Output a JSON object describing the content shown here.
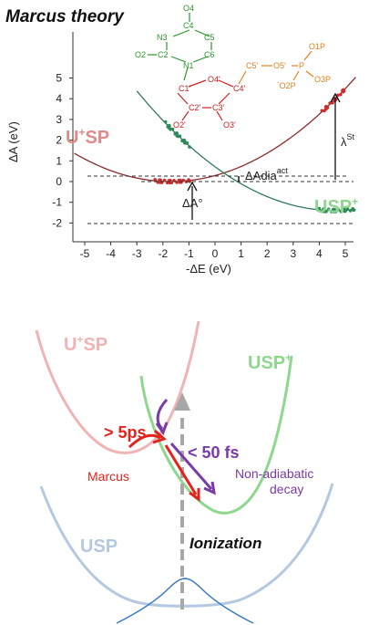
{
  "top": {
    "title": "Marcus theory",
    "yaxis_label": "ΔA (eV)",
    "xaxis_label": "-ΔE (eV)",
    "yticks": [
      "5",
      "4",
      "3",
      "2",
      "1",
      "0",
      "-1",
      "-2"
    ],
    "xticks": [
      "-5",
      "-4",
      "-3",
      "-2",
      "-1",
      "0",
      "1",
      "2",
      "3",
      "4",
      "5"
    ],
    "state_usp_plus": "U+SP",
    "state_usp_minus": "USP+",
    "label_adia": "ΔAdia",
    "label_adia_sup": "act",
    "label_dA0": "ΔA°",
    "label_lambda": "λ",
    "label_lambda_sup": "St",
    "colors": {
      "red_curve": "#8b2b2b",
      "green_curve": "#2f7a5a",
      "red_points": "#c83030",
      "green_points": "#2f8a5a",
      "state_red": "#e08a8a",
      "state_green": "#8fd48f"
    }
  },
  "molecule": {
    "base_atoms": {
      "O4": "O4",
      "C4": "C4",
      "N3": "N3",
      "C5": "C5",
      "C2": "C2",
      "C6": "C6",
      "O2": "O2",
      "N1": "N1"
    },
    "sugar_atoms": {
      "C1": "C1'",
      "O4p": "O4'",
      "C4p": "C4'",
      "C2p": "C2'",
      "C3p": "C3'",
      "O2p": "O2'",
      "O3p": "O3'"
    },
    "phos_atoms": {
      "C5p": "C5'",
      "O5p": "O5'",
      "P": "P",
      "O1P": "O1P",
      "O2P": "O2P",
      "O3P": "O3P"
    }
  },
  "bottom": {
    "state_usp_plus": "U+SP",
    "state_usp_minus": "USP+",
    "state_usp": "USP",
    "marcus_time": "> 5ps",
    "marcus_label": "Marcus",
    "fast_time": "< 50 fs",
    "nonadiabatic_label_1": "Non-adiabatic",
    "nonadiabatic_label_2": "decay",
    "ionization_label": "Ionization",
    "colors": {
      "pink": "#f0b4b4",
      "green": "#8ed88e",
      "blue": "#b4c8e0",
      "red": "#e8201c",
      "purple": "#7a3aa8",
      "gauss": "#3a7ac0"
    }
  }
}
